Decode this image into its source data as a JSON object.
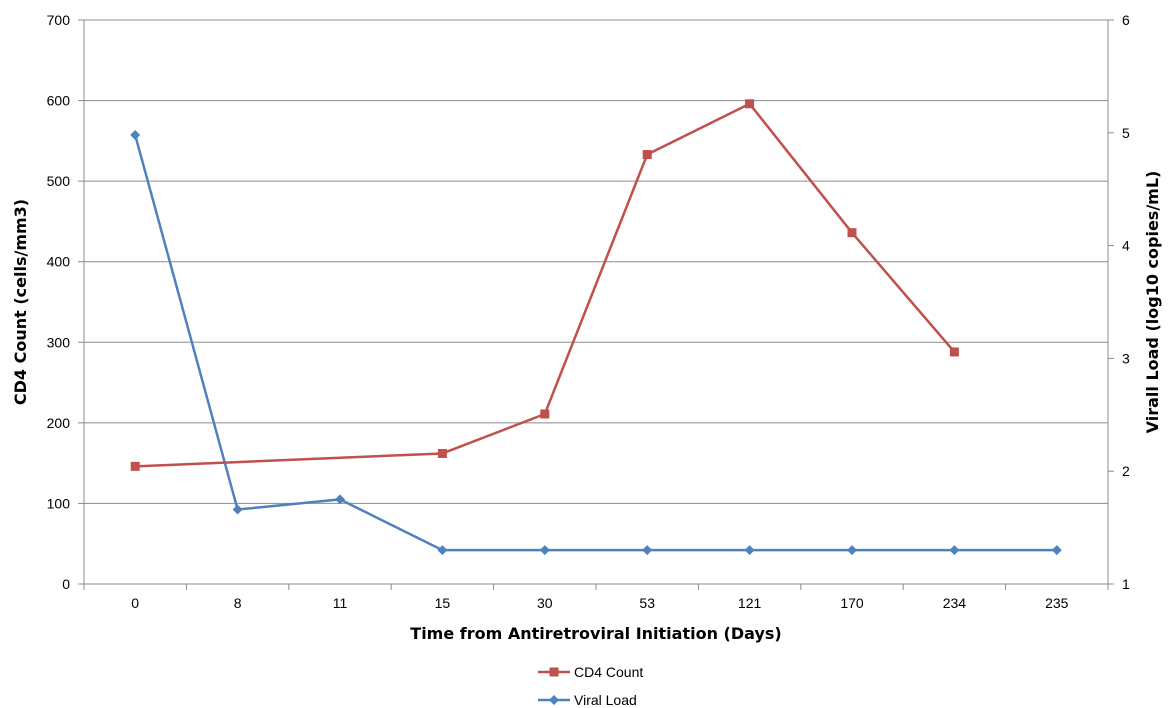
{
  "chart_data": {
    "type": "line",
    "categories": [
      "0",
      "8",
      "11",
      "15",
      "30",
      "53",
      "121",
      "170",
      "234",
      "235"
    ],
    "xlabel": "Time from Antiretroviral Initiation (Days)",
    "ylabel": "CD4 Count (cells/mm3)",
    "y2label": "Virall Load (log10 copies/mL)",
    "ylim": [
      0,
      700
    ],
    "y2lim": [
      1,
      6
    ],
    "yticks": [
      "0",
      "100",
      "200",
      "300",
      "400",
      "500",
      "600",
      "700"
    ],
    "y2ticks": [
      "1",
      "2",
      "3",
      "4",
      "5",
      "6"
    ],
    "grid": true,
    "legend_position": "bottom",
    "series": [
      {
        "name": "CD4 Count",
        "axis": "left",
        "color": "#C0504D",
        "marker": "square",
        "values": [
          146,
          null,
          null,
          162,
          211,
          533,
          596,
          436,
          288,
          null
        ]
      },
      {
        "name": "Viral Load",
        "axis": "right",
        "color": "#4F81BD",
        "marker": "diamond",
        "values": [
          4.98,
          1.66,
          1.75,
          1.3,
          1.3,
          1.3,
          1.3,
          1.3,
          1.3,
          1.3
        ]
      }
    ]
  }
}
